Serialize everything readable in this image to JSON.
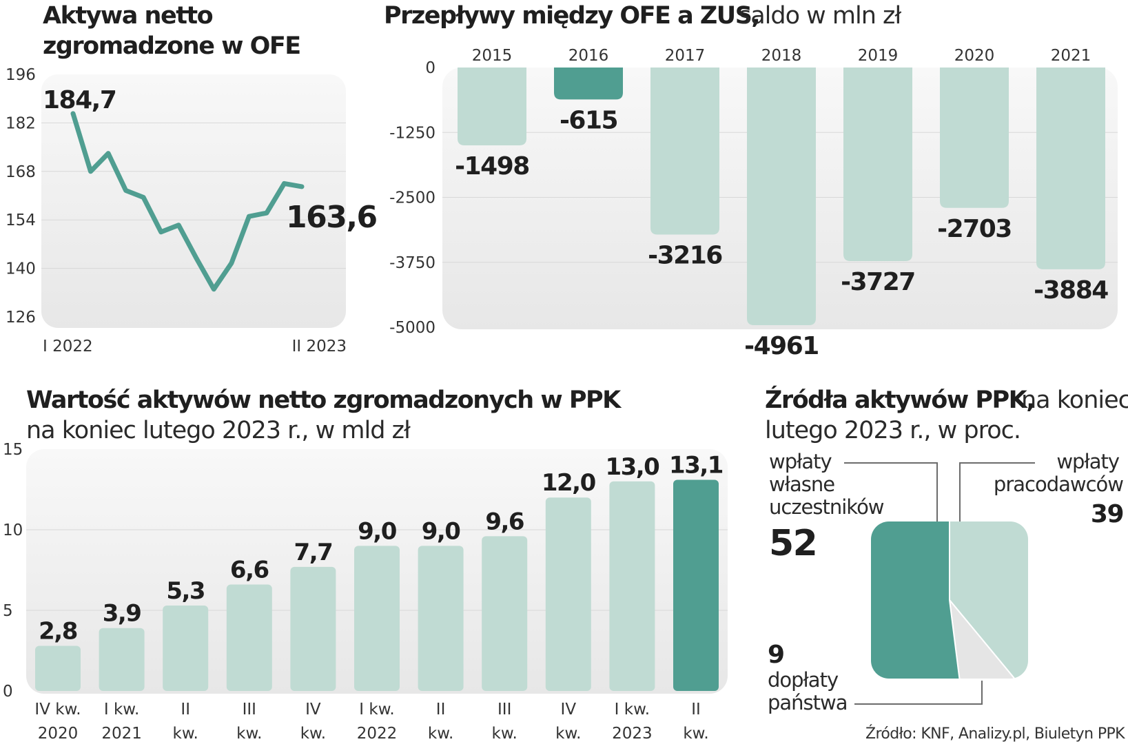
{
  "colors": {
    "dark": "#509e91",
    "light": "#c0dbd3",
    "grey": "#e5e5e5",
    "panel_top": "#f8f8f8",
    "panel_bottom": "#e8e8e8",
    "grid": "#d8d8d8"
  },
  "source": "Źródło: KNF, Analizy.pl, Biuletyn PPK",
  "chart_data": [
    {
      "id": "ofe_net_assets",
      "type": "line",
      "title_lines": [
        "Aktywa netto",
        "zgromadzone w OFE"
      ],
      "ylim": [
        126,
        196
      ],
      "yticks": [
        "196",
        "182",
        "168",
        "154",
        "140",
        "126"
      ],
      "x_start_label": "I 2022",
      "x_end_label": "II 2023",
      "values": [
        184.7,
        168,
        173.2,
        162.5,
        160.5,
        150.5,
        152.5,
        143,
        134,
        141.5,
        155,
        156,
        164.5,
        163.6
      ],
      "first_label": "184,7",
      "last_label": "163,6",
      "grid": true
    },
    {
      "id": "ofe_zus_flows",
      "type": "bar",
      "title": "Przepływy między OFE a ZUS,",
      "subtitle": "saldo w mln zł",
      "ylim": [
        -5000,
        0
      ],
      "yticks": [
        "0",
        "-1250",
        "-2500",
        "-3750",
        "-5000"
      ],
      "categories": [
        "2015",
        "2016",
        "2017",
        "2018",
        "2019",
        "2020",
        "2021"
      ],
      "values": [
        -1498,
        -615,
        -3216,
        -4961,
        -3727,
        -2703,
        -3884
      ],
      "labels": [
        "-1498",
        "-615",
        "-3216",
        "-4961",
        "-3727",
        "-2703",
        "-3884"
      ],
      "highlight_index": 1,
      "grid": true
    },
    {
      "id": "ppk_net_assets",
      "type": "bar",
      "title": "Wartość aktywów netto zgromadzonych w PPK",
      "subtitle": "na koniec lutego 2023 r., w mld zł",
      "ylim": [
        0,
        15
      ],
      "yticks": [
        "15",
        "10",
        "5",
        "0"
      ],
      "categories": [
        [
          "IV kw.",
          "2020"
        ],
        [
          "I kw.",
          "2021"
        ],
        [
          "II",
          "kw."
        ],
        [
          "III",
          "kw."
        ],
        [
          "IV",
          "kw."
        ],
        [
          "I kw.",
          "2022"
        ],
        [
          "II",
          "kw."
        ],
        [
          "III",
          "kw."
        ],
        [
          "IV",
          "kw."
        ],
        [
          "I kw.",
          "2023"
        ],
        [
          "II",
          "kw."
        ]
      ],
      "values": [
        2.8,
        3.9,
        5.3,
        6.6,
        7.7,
        9.0,
        9.0,
        9.6,
        12.0,
        13.0,
        13.1
      ],
      "labels": [
        "2,8",
        "3,9",
        "5,3",
        "6,6",
        "7,7",
        "9,0",
        "9,0",
        "9,6",
        "12,0",
        "13,0",
        "13,1"
      ],
      "highlight_index": 10,
      "grid": true
    },
    {
      "id": "ppk_asset_sources",
      "type": "pie",
      "title": "Źródła aktywów PPK,",
      "subtitle_lines": [
        "na koniec",
        "lutego 2023 r., w proc."
      ],
      "slices": [
        {
          "label_lines": [
            "wpłaty",
            "własne",
            "uczestników"
          ],
          "value": 52,
          "color": "dark"
        },
        {
          "label_lines": [
            "wpłaty",
            "pracodawców"
          ],
          "value": 39,
          "color": "light"
        },
        {
          "label_lines": [
            "dopłaty",
            "państwa"
          ],
          "value": 9,
          "color": "grey"
        }
      ]
    }
  ]
}
